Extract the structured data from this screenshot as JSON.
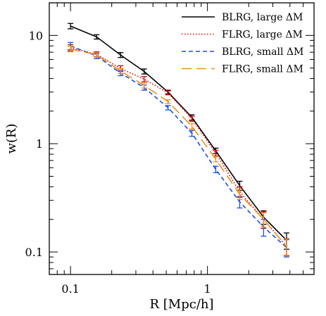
{
  "chart_data": {
    "type": "line",
    "xlabel": "R [Mpc/h]",
    "ylabel": "w(R)",
    "xscale": "log",
    "yscale": "log",
    "xlim": [
      0.07,
      6.0
    ],
    "ylim": [
      0.062,
      20.0
    ],
    "xticks": [
      0.1,
      1
    ],
    "xtick_labels": [
      "0.1",
      "1"
    ],
    "yticks": [
      0.1,
      1,
      10
    ],
    "ytick_labels": [
      "0.1",
      "1",
      "10"
    ],
    "legend_position": "top-right",
    "series": [
      {
        "name": "BLRG, large ΔM",
        "color": "#000000",
        "dash": "solid",
        "x": [
          0.1,
          0.155,
          0.232,
          0.345,
          0.515,
          0.77,
          1.15,
          1.72,
          2.57,
          3.78
        ],
        "y": [
          12.2,
          9.7,
          6.6,
          4.65,
          3.0,
          1.75,
          0.86,
          0.41,
          0.21,
          0.128
        ],
        "err": [
          0.7,
          0.45,
          0.35,
          0.25,
          0.12,
          0.1,
          0.05,
          0.04,
          0.03,
          0.022
        ]
      },
      {
        "name": "FLRG, large ΔM",
        "color": "#e00000",
        "dash": "dotted",
        "x": [
          0.1,
          0.155,
          0.232,
          0.345,
          0.515,
          0.77,
          1.15,
          1.72,
          2.57,
          3.78
        ],
        "y": [
          7.7,
          6.7,
          4.95,
          3.95,
          2.95,
          1.7,
          0.82,
          0.36,
          0.2,
          0.113
        ],
        "err": [
          0.5,
          0.35,
          0.3,
          0.22,
          0.12,
          0.09,
          0.05,
          0.04,
          0.035,
          0.02
        ]
      },
      {
        "name": "BLRG, small ΔM",
        "color": "#1a4fe6",
        "dash": "dashed",
        "x": [
          0.1,
          0.155,
          0.232,
          0.345,
          0.515,
          0.77,
          1.15,
          1.72,
          2.57,
          3.78
        ],
        "y": [
          8.0,
          6.45,
          4.5,
          3.3,
          2.15,
          1.25,
          0.58,
          0.29,
          0.17,
          0.11
        ],
        "err": [
          0.6,
          0.35,
          0.25,
          0.18,
          0.1,
          0.08,
          0.04,
          0.035,
          0.03,
          0.02
        ]
      },
      {
        "name": "FLRG, small ΔM",
        "color": "#f0921e",
        "dash": "longdash",
        "x": [
          0.1,
          0.155,
          0.232,
          0.345,
          0.515,
          0.77,
          1.15,
          1.72,
          2.57,
          3.78
        ],
        "y": [
          7.5,
          6.6,
          4.7,
          3.45,
          2.45,
          1.45,
          0.72,
          0.34,
          0.2,
          0.112
        ],
        "err": [
          0.45,
          0.3,
          0.25,
          0.18,
          0.1,
          0.08,
          0.04,
          0.035,
          0.03,
          0.02
        ]
      }
    ]
  }
}
